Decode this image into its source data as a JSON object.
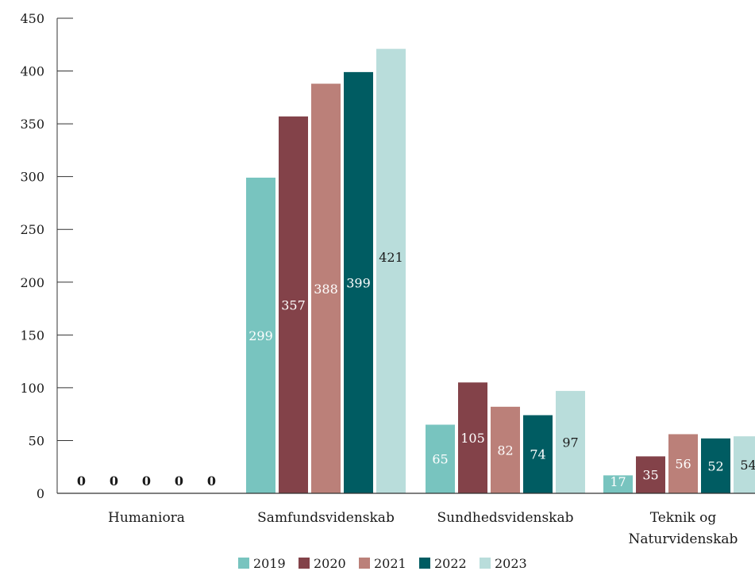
{
  "chart_data": {
    "type": "bar",
    "title": "",
    "xlabel": "",
    "ylabel": "",
    "ylim": [
      0,
      450
    ],
    "yticks": [
      0,
      50,
      100,
      150,
      200,
      250,
      300,
      350,
      400,
      450
    ],
    "grid": false,
    "legend_position": "bottom",
    "categories": [
      [
        "Humaniora"
      ],
      [
        "Samfundsvidenskab"
      ],
      [
        "Sundhedsvidenskab"
      ],
      [
        "Teknik og",
        "Naturvidenskab"
      ]
    ],
    "series": [
      {
        "name": "2019",
        "color": "#78c4bf",
        "label_color": "#ffffff",
        "values": [
          0,
          299,
          65,
          17
        ]
      },
      {
        "name": "2020",
        "color": "#834249",
        "label_color": "#ffffff",
        "values": [
          0,
          357,
          105,
          35
        ]
      },
      {
        "name": "2021",
        "color": "#bb8079",
        "label_color": "#ffffff",
        "values": [
          0,
          388,
          82,
          56
        ]
      },
      {
        "name": "2022",
        "color": "#005c62",
        "label_color": "#ffffff",
        "values": [
          0,
          399,
          74,
          52
        ]
      },
      {
        "name": "2023",
        "color": "#b9dddb",
        "label_color": "#1a1a1a",
        "values": [
          0,
          421,
          97,
          54
        ]
      }
    ]
  }
}
